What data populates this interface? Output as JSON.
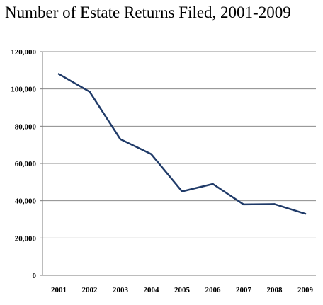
{
  "chart_data": {
    "type": "line",
    "title": "Number of Estate Returns Filed, 2001-2009",
    "xlabel": "",
    "ylabel": "",
    "categories": [
      "2001",
      "2002",
      "2003",
      "2004",
      "2005",
      "2006",
      "2007",
      "2008",
      "2009"
    ],
    "y_ticks": [
      "0",
      "20,000",
      "40,000",
      "60,000",
      "80,000",
      "100,000",
      "120,000"
    ],
    "ylim": [
      0,
      120000
    ],
    "grid": "horizontal",
    "series": [
      {
        "values": [
          108000,
          98500,
          73000,
          65000,
          45000,
          49000,
          38000,
          38200,
          33000
        ],
        "color": "#1f3a68"
      }
    ]
  }
}
